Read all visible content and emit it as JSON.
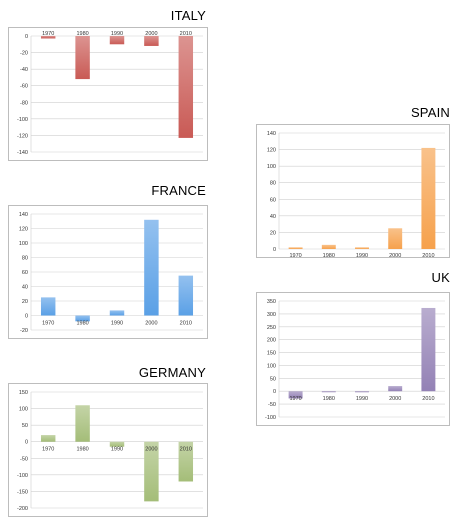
{
  "chart_data": [
    {
      "id": "italy",
      "type": "bar",
      "title": "ITALY",
      "categories": [
        "1970",
        "1980",
        "1990",
        "2000",
        "2010"
      ],
      "values": [
        -3,
        -52,
        -10,
        -12,
        -123
      ],
      "ylim": [
        -140,
        0
      ],
      "yticks": [
        0,
        -20,
        -40,
        -60,
        -80,
        -100,
        -120,
        -140
      ],
      "category_label_position": "top",
      "grid": true,
      "color": "#c95a55"
    },
    {
      "id": "spain",
      "type": "bar",
      "title": "SPAIN",
      "categories": [
        "1970",
        "1980",
        "1990",
        "2000",
        "2010"
      ],
      "values": [
        2,
        5,
        2,
        25,
        122
      ],
      "ylim": [
        0,
        140
      ],
      "yticks": [
        140,
        120,
        100,
        80,
        60,
        40,
        20,
        0
      ],
      "category_label_position": "bottom",
      "grid": true,
      "color": "#f6a14c"
    },
    {
      "id": "france",
      "type": "bar",
      "title": "FRANCE",
      "categories": [
        "1970",
        "1980",
        "1990",
        "2000",
        "2010"
      ],
      "values": [
        25,
        -8,
        7,
        132,
        55
      ],
      "ylim": [
        -20,
        140
      ],
      "yticks": [
        140,
        120,
        100,
        80,
        60,
        40,
        20,
        0,
        -20
      ],
      "category_label_position": "zero",
      "grid": true,
      "color": "#5aa0e6"
    },
    {
      "id": "uk",
      "type": "bar",
      "title": "UK",
      "categories": [
        "1970",
        "1980",
        "1990",
        "2000",
        "2010"
      ],
      "values": [
        -28,
        -3,
        -4,
        20,
        323
      ],
      "ylim": [
        -100,
        350
      ],
      "yticks": [
        350,
        300,
        250,
        200,
        150,
        100,
        50,
        0,
        -50,
        -100
      ],
      "category_label_position": "zero",
      "grid": true,
      "color": "#9381b5"
    },
    {
      "id": "germany",
      "type": "bar",
      "title": "GERMANY",
      "categories": [
        "1970",
        "1980",
        "1990",
        "2000",
        "2010"
      ],
      "values": [
        20,
        110,
        -15,
        -180,
        -120
      ],
      "ylim": [
        -200,
        150
      ],
      "yticks": [
        150,
        100,
        50,
        0,
        -50,
        -100,
        -150,
        -200
      ],
      "category_label_position": "zero",
      "grid": true,
      "color": "#a4bd78"
    }
  ]
}
